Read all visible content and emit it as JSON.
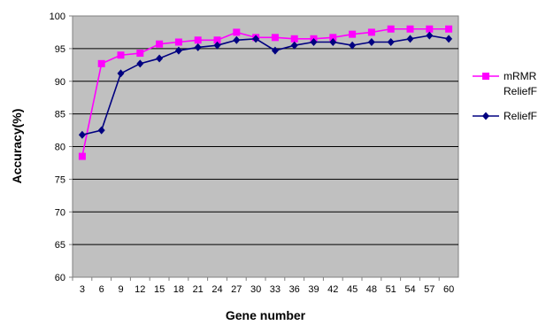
{
  "chart_data": {
    "type": "line",
    "title": "",
    "xlabel": "Gene number",
    "ylabel": "Accuracy(%)",
    "x": [
      3,
      6,
      9,
      12,
      15,
      18,
      21,
      24,
      27,
      30,
      33,
      36,
      39,
      42,
      45,
      48,
      51,
      54,
      57,
      60
    ],
    "x_tick_labels": [
      "3",
      "6",
      "9",
      "12",
      "15",
      "18",
      "21",
      "24",
      "27",
      "30",
      "33",
      "36",
      "39",
      "42",
      "45",
      "48",
      "51",
      "54",
      "57",
      "60"
    ],
    "ylim": [
      60,
      100
    ],
    "y_tick_labels": [
      "60",
      "65",
      "70",
      "75",
      "80",
      "85",
      "90",
      "95",
      "100"
    ],
    "grid": "horizontal",
    "plot_background": "#c0c0c0",
    "legend_position": "right",
    "series": [
      {
        "name": "mRMR ReliefF",
        "legend_lines": [
          "mRMR",
          "ReliefF"
        ],
        "color": "#ff00ff",
        "marker": "square",
        "values": [
          78.5,
          92.7,
          94.0,
          94.3,
          95.7,
          96.0,
          96.3,
          96.3,
          97.5,
          96.7,
          96.7,
          96.5,
          96.5,
          96.7,
          97.2,
          97.5,
          98.0,
          98.0,
          98.0,
          98.0
        ]
      },
      {
        "name": "ReliefF",
        "legend_lines": [
          "ReliefF"
        ],
        "color": "#000080",
        "marker": "diamond",
        "values": [
          81.8,
          82.5,
          91.2,
          92.7,
          93.5,
          94.7,
          95.2,
          95.5,
          96.3,
          96.5,
          94.7,
          95.5,
          96.0,
          96.0,
          95.5,
          96.0,
          96.0,
          96.5,
          97.0,
          96.5
        ]
      }
    ]
  }
}
